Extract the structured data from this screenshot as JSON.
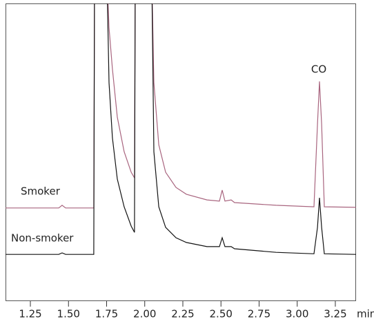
{
  "chart_data": {
    "type": "line",
    "x_label": "min",
    "annotations": [
      "CO"
    ],
    "x": [
      1.087,
      1.436,
      1.458,
      1.481,
      1.662,
      1.666,
      1.671,
      1.752,
      1.766,
      1.788,
      1.82,
      1.865,
      1.911,
      1.933,
      1.938,
      2.046,
      2.06,
      2.092,
      2.137,
      2.205,
      2.273,
      2.408,
      2.49,
      2.508,
      2.526,
      2.567,
      2.589,
      2.861,
      3.11,
      3.133,
      3.146,
      3.16,
      3.178,
      3.386
    ],
    "series": [
      {
        "name": "Smoker",
        "color": "#a8647e",
        "values": [
          31.3,
          31.3,
          32.2,
          31.3,
          31.3,
          31.3,
          110,
          110,
          91.9,
          78.0,
          61.8,
          50.2,
          43.3,
          41.4,
          110,
          110,
          73.4,
          52.5,
          43.3,
          38.2,
          35.9,
          34.0,
          33.6,
          37.3,
          33.6,
          34.0,
          33.1,
          32.2,
          31.7,
          59.5,
          73.8,
          59.5,
          31.7,
          31.5
        ]
      },
      {
        "name": "Non-smoker",
        "color": "#111111",
        "values": [
          15.7,
          15.7,
          16.2,
          15.7,
          15.7,
          15.7,
          110,
          110,
          73.4,
          54.9,
          41.0,
          31.7,
          25.2,
          23.1,
          110,
          110,
          50.2,
          31.7,
          24.8,
          21.3,
          19.7,
          18.3,
          18.3,
          21.3,
          18.3,
          18.3,
          17.6,
          16.4,
          15.9,
          24.8,
          34.7,
          24.8,
          15.9,
          15.7
        ]
      }
    ],
    "xlim": [
      1.087,
      3.386
    ],
    "ylim": [
      0,
      100
    ],
    "xticks": [
      1.25,
      {
        "value": 1.5,
        "label": "1.50"
      },
      1.75,
      {
        "value": 2.0,
        "label": "2.00"
      },
      2.25,
      {
        "value": 2.5,
        "label": "2.50"
      },
      2.75,
      {
        "value": 3.0,
        "label": "3.00"
      },
      3.25
    ]
  }
}
